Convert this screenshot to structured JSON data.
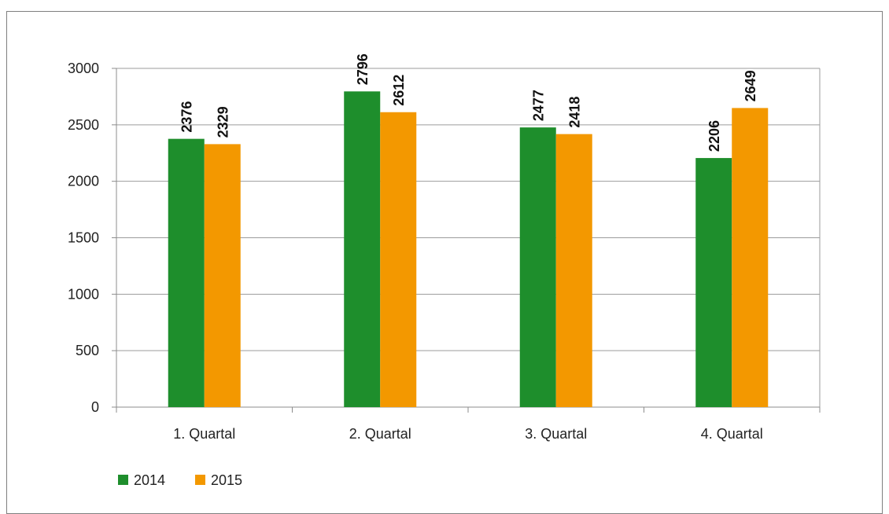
{
  "chart_data": {
    "type": "bar",
    "categories": [
      "1. Quartal",
      "2. Quartal",
      "3. Quartal",
      "4. Quartal"
    ],
    "series": [
      {
        "name": "2014",
        "color": "#1e8e2c",
        "values": [
          2376,
          2796,
          2477,
          2206
        ]
      },
      {
        "name": "2015",
        "color": "#f39800",
        "values": [
          2329,
          2612,
          2418,
          2649
        ]
      }
    ],
    "yticks": [
      "0",
      "500",
      "1000",
      "1500",
      "2000",
      "2500",
      "3000"
    ],
    "ylim": [
      0,
      3000
    ],
    "grid": true,
    "legend": "bottom-left",
    "data_labels": true
  }
}
